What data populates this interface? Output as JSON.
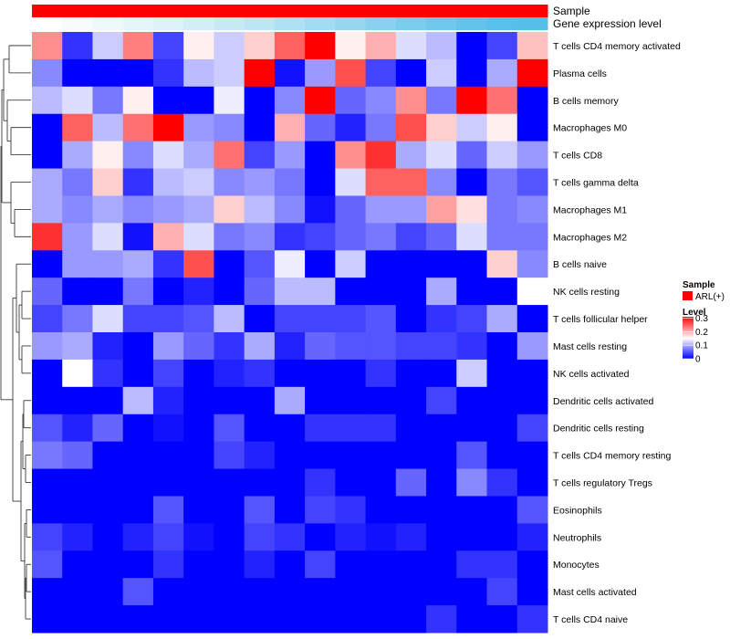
{
  "chart_data": {
    "type": "heatmap",
    "annotation_rows": [
      {
        "name": "Sample",
        "color": "#FF0000"
      },
      {
        "name": "Gene expression level",
        "colors": [
          "#FFFFFF",
          "#F7FBFD",
          "#EFF8FB",
          "#E6F5FA",
          "#DDF2F9",
          "#D3EEF8",
          "#C8EAF7",
          "#BCE6F6",
          "#AFE1F4",
          "#A2DCF2",
          "#95D7F1",
          "#88D2EF",
          "#7BCDEE",
          "#6FC8EC",
          "#63C4EB",
          "#59C0EA",
          "#55BEE9",
          "#55BEE9"
        ]
      },
      {
        "name": "",
        "color": "#FFFFFF"
      }
    ],
    "rows": [
      "T cells CD4 memory activated",
      "Plasma cells",
      "B cells memory",
      "Macrophages M0",
      "T cells CD8",
      "T cells gamma delta",
      "Macrophages M1",
      "Macrophages M2",
      "B cells naive",
      "NK cells resting",
      "T cells follicular helper",
      "Mast cells resting",
      "NK cells activated",
      "Dendritic cells activated",
      "Dendritic cells resting",
      "T cells CD4 memory resting",
      "T cells regulatory  Tregs",
      "Eosinophils",
      "Neutrophils",
      "Monocytes",
      "Mast cells activated",
      "T cells CD4 naive"
    ],
    "values": [
      [
        0.22,
        0.03,
        0.12,
        0.23,
        0.04,
        0.16,
        0.12,
        0.18,
        0.25,
        0.31,
        0.16,
        0.2,
        0.13,
        0.11,
        0.0,
        0.04,
        0.19
      ],
      [
        0.08,
        0.0,
        0.0,
        0.0,
        0.03,
        0.11,
        0.12,
        0.31,
        0.01,
        0.09,
        0.26,
        0.04,
        0.0,
        0.12,
        0.0,
        0.1,
        0.31
      ],
      [
        0.11,
        0.13,
        0.07,
        0.16,
        0.0,
        0.0,
        0.14,
        0.0,
        0.08,
        0.31,
        0.06,
        0.08,
        0.22,
        0.07,
        0.31,
        0.24,
        0.0
      ],
      [
        0.0,
        0.25,
        0.11,
        0.24,
        0.31,
        0.09,
        0.08,
        0.0,
        0.2,
        0.06,
        0.02,
        0.07,
        0.26,
        0.18,
        0.12,
        0.16,
        0.0
      ],
      [
        0.0,
        0.1,
        0.16,
        0.08,
        0.13,
        0.1,
        0.24,
        0.04,
        0.09,
        0.0,
        0.22,
        0.28,
        0.1,
        0.13,
        0.06,
        0.12,
        0.09
      ],
      [
        0.1,
        0.07,
        0.18,
        0.03,
        0.11,
        0.12,
        0.08,
        0.09,
        0.07,
        0.0,
        0.13,
        0.25,
        0.25,
        0.08,
        0.0,
        0.07,
        0.05
      ],
      [
        0.1,
        0.08,
        0.1,
        0.08,
        0.09,
        0.1,
        0.18,
        0.11,
        0.08,
        0.01,
        0.06,
        0.09,
        0.09,
        0.21,
        0.17,
        0.07,
        0.08
      ],
      [
        0.28,
        0.09,
        0.13,
        0.01,
        0.2,
        0.13,
        0.07,
        0.08,
        0.03,
        0.04,
        0.06,
        0.07,
        0.04,
        0.06,
        0.13,
        0.07,
        0.07
      ],
      [
        0.0,
        0.09,
        0.09,
        0.1,
        0.03,
        0.26,
        0.0,
        0.05,
        0.14,
        0.0,
        0.12,
        0.0,
        0.0,
        0.0,
        0.0,
        0.18,
        0.08
      ],
      [
        0.06,
        0.0,
        0.0,
        0.07,
        0.0,
        0.02,
        0.0,
        0.06,
        0.11,
        0.11,
        0.0,
        0.0,
        0.0,
        0.1,
        0.0,
        0.0,
        0.15
      ],
      [
        0.04,
        0.07,
        0.13,
        0.04,
        0.04,
        0.05,
        0.11,
        0.0,
        0.04,
        0.04,
        0.04,
        0.05,
        0.0,
        0.03,
        0.04,
        0.1,
        0.0
      ],
      [
        0.09,
        0.1,
        0.02,
        0.0,
        0.09,
        0.06,
        0.03,
        0.1,
        0.02,
        0.06,
        0.05,
        0.05,
        0.04,
        0.04,
        0.03,
        0.0,
        0.09
      ],
      [
        0.0,
        0.15,
        0.03,
        0.0,
        0.04,
        0.0,
        0.02,
        0.03,
        0.0,
        0.0,
        0.0,
        0.03,
        0.0,
        0.0,
        0.12,
        0.0,
        0.0
      ],
      [
        0.0,
        0.0,
        0.0,
        0.11,
        0.02,
        0.0,
        0.0,
        0.0,
        0.1,
        0.0,
        0.0,
        0.0,
        0.0,
        0.04,
        0.0,
        0.0,
        0.0
      ],
      [
        0.05,
        0.02,
        0.06,
        0.0,
        0.01,
        0.0,
        0.05,
        0.0,
        0.0,
        0.03,
        0.03,
        0.03,
        0.0,
        0.0,
        0.0,
        0.0,
        0.04
      ],
      [
        0.07,
        0.06,
        0.0,
        0.0,
        0.0,
        0.0,
        0.04,
        0.02,
        0.0,
        0.0,
        0.0,
        0.0,
        0.0,
        0.0,
        0.05,
        0.0,
        0.0
      ],
      [
        0.0,
        0.0,
        0.0,
        0.0,
        0.0,
        0.0,
        0.0,
        0.0,
        0.0,
        0.03,
        0.0,
        0.0,
        0.06,
        0.0,
        0.08,
        0.03,
        0.0
      ],
      [
        0.0,
        0.0,
        0.0,
        0.0,
        0.05,
        0.0,
        0.0,
        0.05,
        0.0,
        0.04,
        0.03,
        0.0,
        0.0,
        0.0,
        0.0,
        0.0,
        0.05
      ],
      [
        0.04,
        0.02,
        0.0,
        0.02,
        0.04,
        0.01,
        0.0,
        0.04,
        0.03,
        0.0,
        0.02,
        0.01,
        0.02,
        0.0,
        0.0,
        0.0,
        0.02
      ],
      [
        0.05,
        0.0,
        0.0,
        0.0,
        0.03,
        0.0,
        0.0,
        0.02,
        0.0,
        0.04,
        0.0,
        0.0,
        0.0,
        0.0,
        0.03,
        0.03,
        0.0
      ],
      [
        0.0,
        0.0,
        0.0,
        0.05,
        0.0,
        0.0,
        0.0,
        0.0,
        0.0,
        0.0,
        0.0,
        0.0,
        0.0,
        0.0,
        0.0,
        0.04,
        0.0
      ],
      [
        0.0,
        0.0,
        0.0,
        0.0,
        0.0,
        0.0,
        0.0,
        0.0,
        0.0,
        0.0,
        0.0,
        0.0,
        0.0,
        0.03,
        0.0,
        0.0,
        0.03
      ]
    ],
    "color_scale": {
      "min": 0,
      "mid": 0.15,
      "max": 0.31,
      "low": "#0000FF",
      "midcolor": "#FFFFFF",
      "high": "#FF0000"
    },
    "legend": {
      "sample_title": "Sample",
      "sample_entry": "ARL(+)",
      "sample_color": "#FF0000",
      "level_title": "Level",
      "level_ticks": [
        0.3,
        0.2,
        0.1,
        0
      ],
      "level_tick_labels": [
        "0.3",
        "0.2",
        "0.1",
        "0"
      ],
      "placement": "right"
    }
  }
}
